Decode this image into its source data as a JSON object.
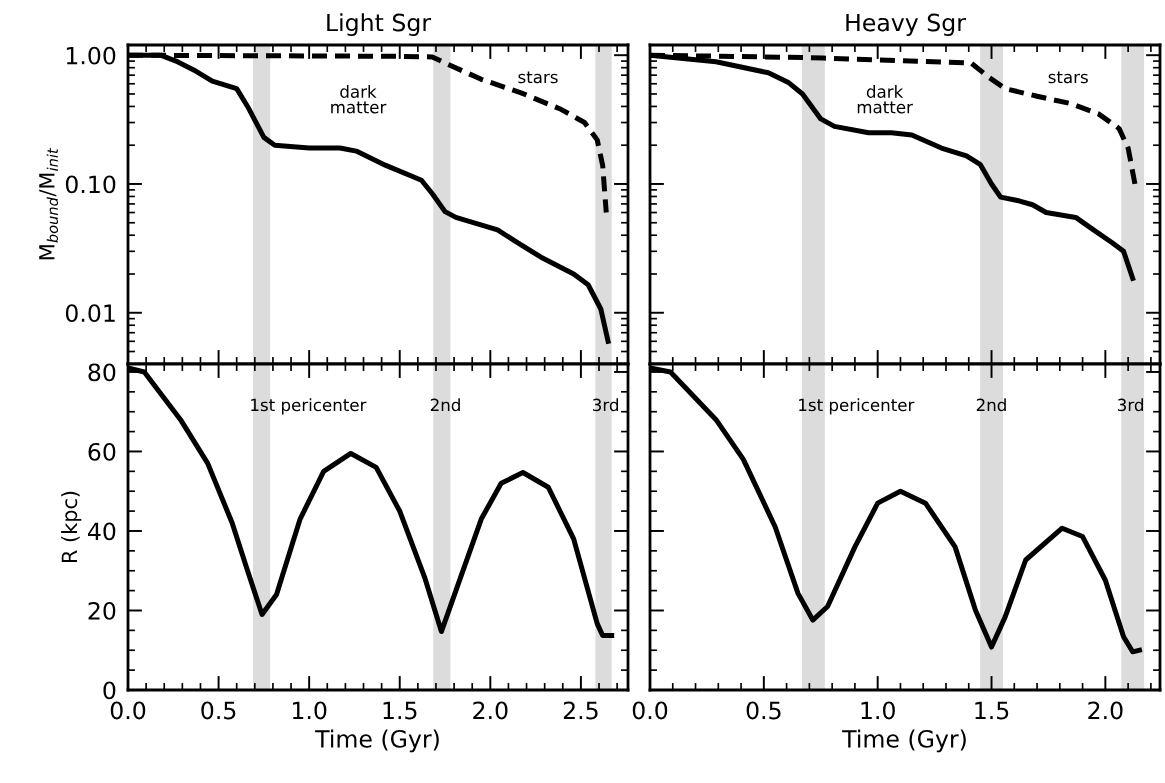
{
  "chart_data": [
    {
      "type": "line",
      "title": "Light Sgr",
      "ylabel": "M$_{bound}$/M$_{init}$",
      "log": true,
      "xlim": [
        0,
        2.76
      ],
      "ylim": [
        0.004,
        1.2
      ],
      "xticks": [
        {
          "value": 0,
          "label": null
        },
        {
          "value": 0.5,
          "label": null
        },
        {
          "value": 1,
          "label": null
        },
        {
          "value": 1.5,
          "label": null
        },
        {
          "value": 2,
          "label": null
        },
        {
          "value": 2.5,
          "label": null
        }
      ],
      "yticks": [
        {
          "value": 1,
          "label": "1.00"
        },
        {
          "value": 0.1,
          "label": "0.10"
        },
        {
          "value": 0.01,
          "label": "0.01"
        }
      ],
      "tick_labels": "y",
      "grid": false,
      "legend": false,
      "series": [
        {
          "color": "#000000",
          "line_style": "solid",
          "x": [
            0,
            0.18,
            0.265,
            0.376,
            0.465,
            0.6,
            0.66,
            0.75,
            0.81,
            1.0,
            1.17,
            1.26,
            1.42,
            1.62,
            1.68,
            1.75,
            1.81,
            2.04,
            2.15,
            2.28,
            2.46,
            2.54,
            2.61,
            2.65
          ],
          "values": [
            1.0,
            1.0,
            0.9,
            0.75,
            0.63,
            0.55,
            0.4,
            0.23,
            0.2,
            0.19,
            0.19,
            0.18,
            0.14,
            0.107,
            0.084,
            0.061,
            0.055,
            0.044,
            0.035,
            0.027,
            0.02,
            0.0165,
            0.0107,
            0.006
          ]
        },
        {
          "color": "#000000",
          "line_style": "dashed",
          "x": [
            0,
            1.5,
            1.68,
            1.75,
            1.95,
            2.17,
            2.39,
            2.52,
            2.59,
            2.62,
            2.64
          ],
          "values": [
            1.0,
            0.98,
            0.97,
            0.87,
            0.65,
            0.51,
            0.38,
            0.3,
            0.22,
            0.14,
            0.06
          ]
        }
      ],
      "bands": [
        {
          "axis": "x",
          "from": 0.69,
          "to": 0.785,
          "color": "#dcdcdc"
        },
        {
          "axis": "x",
          "from": 1.685,
          "to": 1.78,
          "color": "#dcdcdc"
        },
        {
          "axis": "x",
          "from": 2.58,
          "to": 2.67,
          "color": "#dcdcdc"
        }
      ],
      "annotations": [
        "dark\nmatter",
        "stars"
      ]
    },
    {
      "type": "line",
      "title": "Heavy Sgr",
      "log": true,
      "xlim": [
        0,
        2.24
      ],
      "ylim": [
        0.004,
        1.2
      ],
      "xticks": [
        {
          "value": 0,
          "label": null
        },
        {
          "value": 0.5,
          "label": null
        },
        {
          "value": 1,
          "label": null
        },
        {
          "value": 1.5,
          "label": null
        },
        {
          "value": 2,
          "label": null
        }
      ],
      "yticks": [
        {
          "value": 1,
          "label": null
        },
        {
          "value": 0.1,
          "label": null
        },
        {
          "value": 0.01,
          "label": null
        }
      ],
      "tick_labels": false,
      "grid": false,
      "legend": false,
      "series": [
        {
          "color": "#000000",
          "line_style": "solid",
          "x": [
            0,
            0.29,
            0.52,
            0.61,
            0.67,
            0.75,
            0.81,
            0.96,
            1.06,
            1.15,
            1.28,
            1.39,
            1.45,
            1.5,
            1.54,
            1.62,
            1.68,
            1.74,
            1.87,
            1.94,
            2.03,
            2.08,
            2.12
          ],
          "values": [
            1.0,
            0.89,
            0.73,
            0.61,
            0.5,
            0.32,
            0.28,
            0.25,
            0.25,
            0.24,
            0.19,
            0.165,
            0.142,
            0.1,
            0.079,
            0.074,
            0.069,
            0.06,
            0.055,
            0.045,
            0.035,
            0.03,
            0.0185
          ]
        },
        {
          "color": "#000000",
          "line_style": "dashed",
          "x": [
            0,
            0.67,
            0.76,
            1.41,
            1.49,
            1.56,
            1.7,
            1.85,
            1.97,
            2.06,
            2.1,
            2.13
          ],
          "values": [
            1.0,
            0.96,
            0.95,
            0.87,
            0.67,
            0.55,
            0.48,
            0.42,
            0.35,
            0.27,
            0.19,
            0.1
          ]
        }
      ],
      "bands": [
        {
          "axis": "x",
          "from": 0.667,
          "to": 0.768,
          "color": "#dcdcdc"
        },
        {
          "axis": "x",
          "from": 1.45,
          "to": 1.55,
          "color": "#dcdcdc"
        },
        {
          "axis": "x",
          "from": 2.07,
          "to": 2.17,
          "color": "#dcdcdc"
        }
      ],
      "annotations": [
        "dark\nmatter",
        "stars"
      ]
    },
    {
      "type": "line",
      "xlabel": "Time (Gyr)",
      "ylabel": "R (kpc)",
      "xlim": [
        0,
        2.76
      ],
      "ylim": [
        0,
        82
      ],
      "xticks": [
        {
          "value": 0,
          "label": "0.0"
        },
        {
          "value": 0.5,
          "label": "0.5"
        },
        {
          "value": 1,
          "label": "1.0"
        },
        {
          "value": 1.5,
          "label": "1.5"
        },
        {
          "value": 2,
          "label": "2.0"
        },
        {
          "value": 2.5,
          "label": "2.5"
        }
      ],
      "yticks": [
        0,
        20,
        40,
        60,
        80
      ],
      "grid": false,
      "legend": false,
      "series": [
        {
          "color": "#000000",
          "line_style": "solid",
          "x": [
            0,
            0.09,
            0.29,
            0.44,
            0.575,
            0.66,
            0.74,
            0.82,
            0.95,
            1.08,
            1.23,
            1.37,
            1.5,
            1.64,
            1.73,
            1.81,
            1.95,
            2.06,
            2.18,
            2.32,
            2.46,
            2.59,
            2.62,
            2.67
          ],
          "values": [
            81,
            80,
            68,
            57,
            42,
            30,
            19,
            24,
            43,
            55,
            59.5,
            56,
            45,
            28,
            14.7,
            25,
            43,
            52,
            54.7,
            51,
            38,
            16.7,
            13.7,
            13.7
          ]
        }
      ],
      "bands": [
        {
          "axis": "x",
          "from": 0.69,
          "to": 0.785,
          "color": "#dcdcdc",
          "label": "1st pericenter"
        },
        {
          "axis": "x",
          "from": 1.685,
          "to": 1.78,
          "color": "#dcdcdc",
          "label": "2nd"
        },
        {
          "axis": "x",
          "from": 2.58,
          "to": 2.67,
          "color": "#dcdcdc",
          "label": "3rd"
        }
      ]
    },
    {
      "type": "line",
      "xlabel": "Time (Gyr)",
      "xlim": [
        0,
        2.24
      ],
      "ylim": [
        0,
        82
      ],
      "xticks": [
        {
          "value": 0,
          "label": "0.0"
        },
        {
          "value": 0.5,
          "label": "0.5"
        },
        {
          "value": 1,
          "label": "1.0"
        },
        {
          "value": 1.5,
          "label": "1.5"
        },
        {
          "value": 2,
          "label": "2.0"
        }
      ],
      "yticks": [
        {
          "value": 0,
          "label": null
        },
        {
          "value": 20,
          "label": null
        },
        {
          "value": 40,
          "label": null
        },
        {
          "value": 60,
          "label": null
        },
        {
          "value": 80,
          "label": null
        }
      ],
      "tick_labels": "x",
      "grid": false,
      "legend": false,
      "series": [
        {
          "color": "#000000",
          "line_style": "solid",
          "x": [
            0,
            0.09,
            0.29,
            0.41,
            0.55,
            0.65,
            0.715,
            0.78,
            0.9,
            1.0,
            1.1,
            1.21,
            1.34,
            1.43,
            1.5,
            1.56,
            1.65,
            1.81,
            1.9,
            2.0,
            2.08,
            2.12,
            2.15
          ],
          "values": [
            81,
            80,
            68,
            58,
            41,
            24.3,
            17.6,
            21,
            36,
            47,
            50,
            47,
            36,
            20,
            10.8,
            18.4,
            32.7,
            40.7,
            38.6,
            27.6,
            13.4,
            9.6,
            10
          ]
        }
      ],
      "bands": [
        {
          "axis": "x",
          "from": 0.667,
          "to": 0.768,
          "color": "#dcdcdc",
          "label": "1st pericenter"
        },
        {
          "axis": "x",
          "from": 1.45,
          "to": 1.55,
          "color": "#dcdcdc",
          "label": "2nd"
        },
        {
          "axis": "x",
          "from": 2.07,
          "to": 2.17,
          "color": "#dcdcdc",
          "label": "3rd"
        }
      ]
    }
  ]
}
